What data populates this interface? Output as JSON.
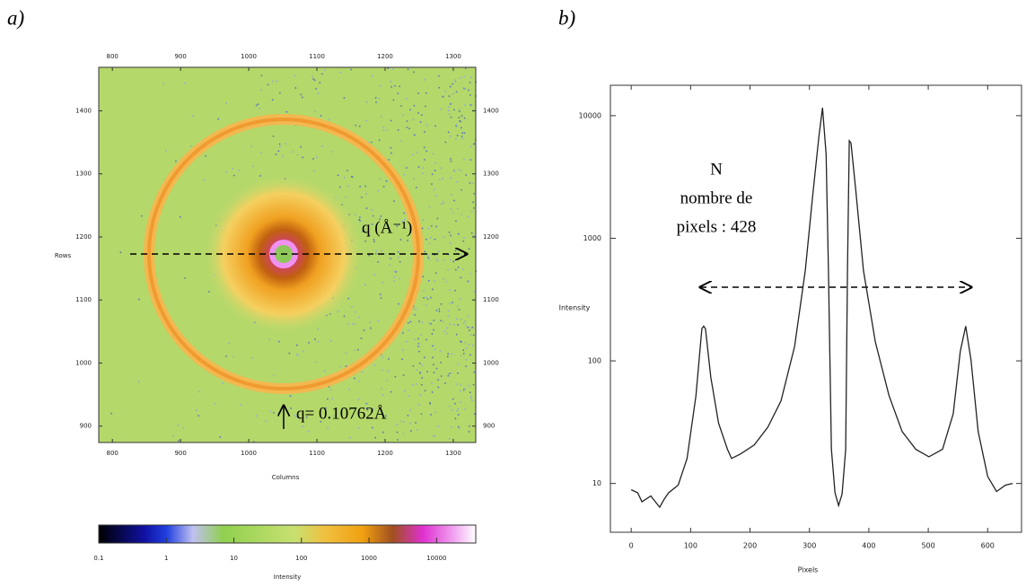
{
  "chart_data": [
    {
      "type": "image",
      "panel_label": "a)",
      "x_label": "Columns",
      "y_label": "Rows",
      "xlim": [
        780,
        1333
      ],
      "xticks": [
        800,
        900,
        1000,
        1100,
        1200,
        1300
      ],
      "ylim": [
        874,
        1469
      ],
      "yticks": [
        900,
        1000,
        1100,
        1200,
        1300,
        1400
      ],
      "colorbar": {
        "label": "Intensity",
        "log": true,
        "lim": [
          0.1,
          38000
        ],
        "ticks": [
          0.1,
          1,
          10,
          100,
          1000,
          10000
        ]
      },
      "annotations": [
        "q (Å⁻¹)",
        "q= 0.10762Å"
      ]
    },
    {
      "type": "line",
      "panel_label": "b)",
      "x_label": "Pixels",
      "y_label": "Intensity",
      "log_y": true,
      "color": "#222",
      "xlim": [
        -35,
        657
      ],
      "xticks": [
        0,
        100,
        200,
        300,
        400,
        500,
        600
      ],
      "ylim": [
        4,
        17700
      ],
      "yticks": [
        10,
        100,
        1000,
        10000
      ],
      "x": [
        0,
        11,
        18,
        33,
        48,
        56,
        63,
        79,
        94,
        109,
        119,
        122,
        125,
        134,
        147,
        162,
        169,
        184,
        207,
        230,
        252,
        275,
        293,
        305,
        316,
        322,
        328,
        332,
        337,
        343,
        349,
        355,
        361,
        364,
        367,
        370,
        378,
        391,
        411,
        434,
        456,
        479,
        501,
        524,
        542,
        554,
        563,
        572,
        584,
        600,
        615,
        630,
        642
      ],
      "values": [
        8.9,
        8.4,
        7.1,
        7.9,
        6.4,
        7.5,
        8.4,
        9.7,
        16,
        52,
        183,
        192,
        183,
        73,
        31,
        19,
        16,
        17.4,
        20.6,
        28.8,
        47,
        131,
        546,
        2100,
        6800,
        11600,
        4850,
        546,
        19,
        8.4,
        6.6,
        8.2,
        19,
        546,
        6250,
        6000,
        2480,
        546,
        142,
        52,
        26.5,
        19,
        16.5,
        19,
        37,
        120,
        192,
        102,
        26.5,
        11.4,
        8.6,
        9.7,
        10
      ],
      "annotations": [
        "N",
        "nombre de",
        "pixels : 428"
      ]
    }
  ]
}
